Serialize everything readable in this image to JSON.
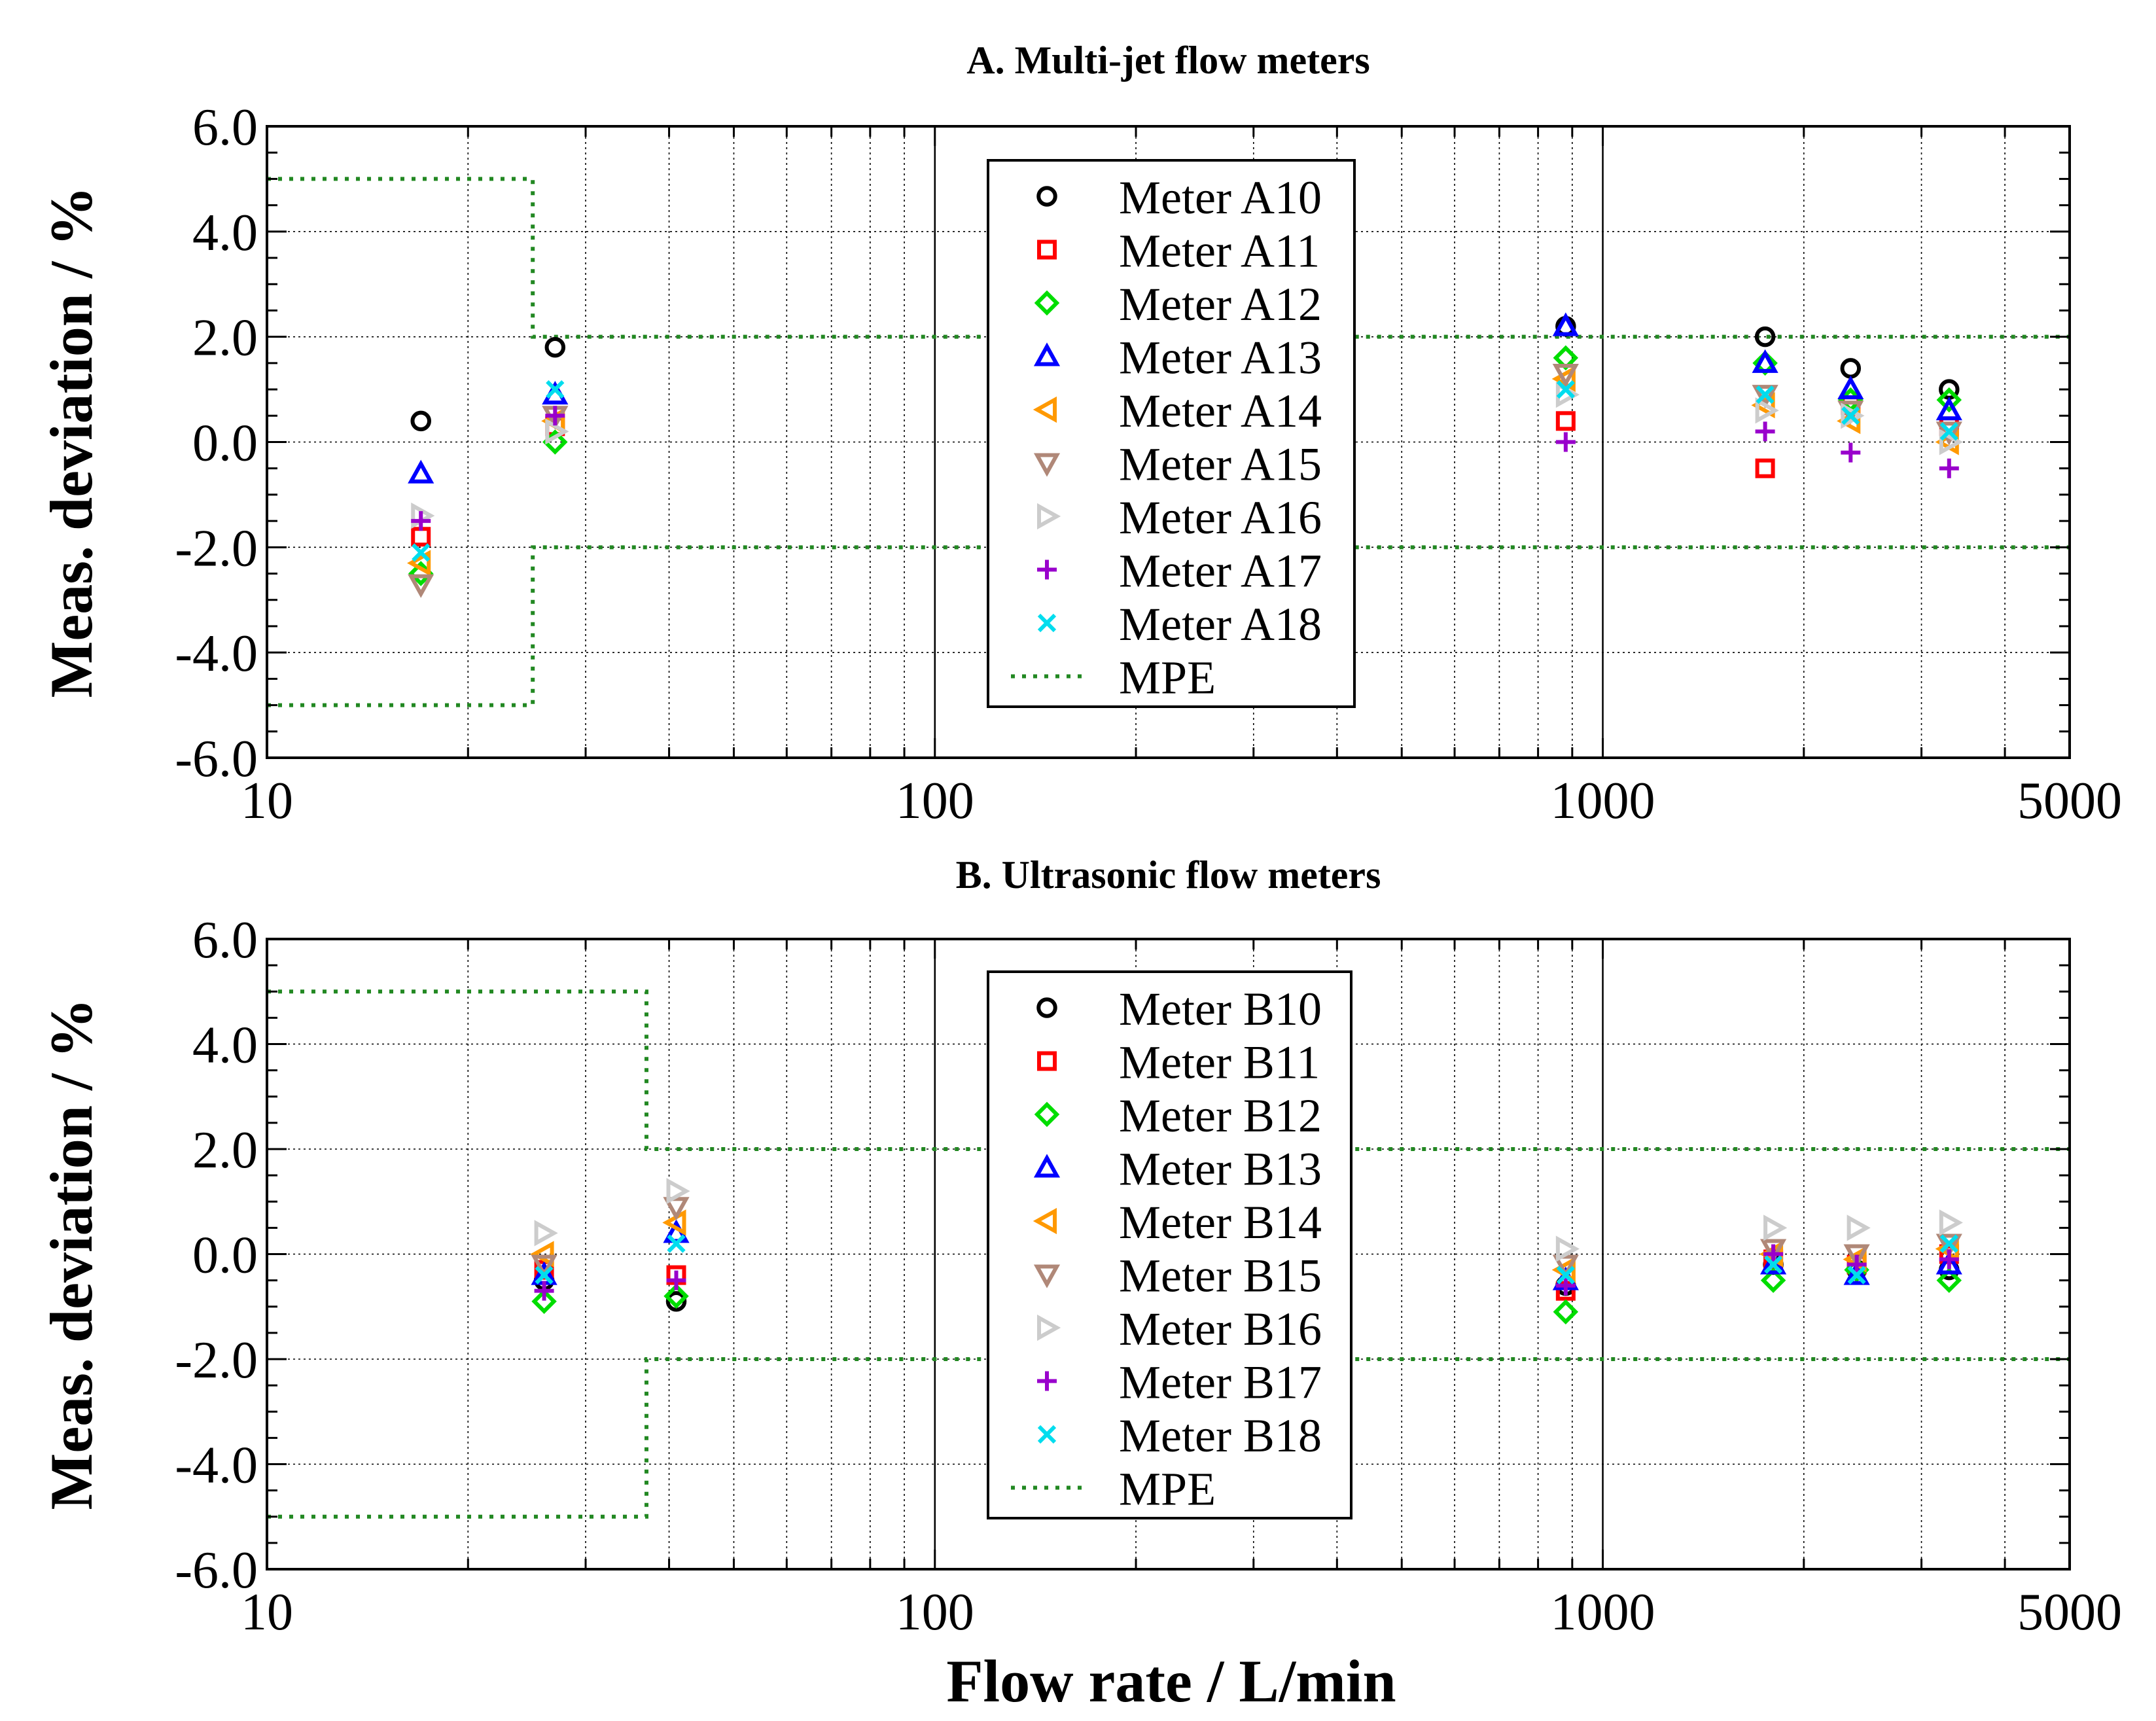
{
  "figure": {
    "xlabel": "Flow rate / L/min"
  },
  "chart_data": [
    {
      "type": "scatter",
      "title": "A. Multi-jet flow meters",
      "xlabel": "Flow rate / L/min",
      "ylabel": "Meas. deviation / %",
      "xscale": "log",
      "xlim": [
        10,
        5000
      ],
      "ylim": [
        -6.0,
        6.0
      ],
      "x_ticks": [
        "10",
        "100",
        "1000",
        "5000"
      ],
      "y_ticks": [
        "6.0",
        "4.0",
        "2.0",
        "0.0",
        "-2.0",
        "-4.0",
        "-6.0"
      ],
      "grid": true,
      "legend_position": "top-center",
      "x": [
        17,
        27,
        880,
        1750,
        2350,
        3300
      ],
      "series": [
        {
          "name": "Meter A10",
          "marker": "circle",
          "color": "#000000",
          "values": [
            0.4,
            1.8,
            2.2,
            2.0,
            1.4,
            1.0
          ]
        },
        {
          "name": "Meter A11",
          "marker": "square",
          "color": "#ff0000",
          "values": [
            -1.8,
            0.3,
            0.4,
            -0.5,
            0.7,
            0.3
          ]
        },
        {
          "name": "Meter A12",
          "marker": "diamond",
          "color": "#00dd00",
          "values": [
            -2.5,
            0.0,
            1.6,
            1.5,
            0.8,
            0.8
          ]
        },
        {
          "name": "Meter A13",
          "marker": "triangle-up",
          "color": "#0000ff",
          "values": [
            -0.6,
            0.9,
            2.2,
            1.5,
            1.0,
            0.6
          ]
        },
        {
          "name": "Meter A14",
          "marker": "triangle-left",
          "color": "#ff9900",
          "values": [
            -2.3,
            0.4,
            1.2,
            0.7,
            0.4,
            0.0
          ]
        },
        {
          "name": "Meter A15",
          "marker": "triangle-down",
          "color": "#b08878",
          "values": [
            -2.7,
            0.5,
            1.3,
            0.9,
            0.6,
            0.2
          ]
        },
        {
          "name": "Meter A16",
          "marker": "triangle-right",
          "color": "#cccccc",
          "values": [
            -1.4,
            0.2,
            0.9,
            0.6,
            0.5,
            0.0
          ]
        },
        {
          "name": "Meter A17",
          "marker": "plus",
          "color": "#9900cc",
          "values": [
            -1.5,
            0.5,
            0.0,
            0.2,
            -0.2,
            -0.5
          ]
        },
        {
          "name": "Meter A18",
          "marker": "cross",
          "color": "#00ddee",
          "values": [
            -2.1,
            1.0,
            1.0,
            0.9,
            0.5,
            0.2
          ]
        },
        {
          "name": "MPE",
          "marker": "line",
          "color": "#228822",
          "values": []
        }
      ],
      "mpe": {
        "transition": 25,
        "low_upper": 5.0,
        "low_lower": -5.0,
        "high_upper": 2.0,
        "high_lower": -2.0
      }
    },
    {
      "type": "scatter",
      "title": "B. Ultrasonic flow meters",
      "xlabel": "Flow rate / L/min",
      "ylabel": "Meas. deviation / %",
      "xscale": "log",
      "xlim": [
        10,
        5000
      ],
      "ylim": [
        -6.0,
        6.0
      ],
      "x_ticks": [
        "10",
        "100",
        "1000",
        "5000"
      ],
      "y_ticks": [
        "6.0",
        "4.0",
        "2.0",
        "0.0",
        "-2.0",
        "-4.0",
        "-6.0"
      ],
      "grid": true,
      "legend_position": "top-center",
      "x": [
        26,
        41,
        880,
        1800,
        2400,
        3300
      ],
      "series": [
        {
          "name": "Meter B10",
          "marker": "circle",
          "color": "#000000",
          "values": [
            -0.5,
            -0.9,
            -0.6,
            -0.2,
            -0.3,
            -0.3
          ]
        },
        {
          "name": "Meter B11",
          "marker": "square",
          "color": "#ff0000",
          "values": [
            -0.3,
            -0.4,
            -0.7,
            -0.1,
            -0.2,
            0.0
          ]
        },
        {
          "name": "Meter B12",
          "marker": "diamond",
          "color": "#00dd00",
          "values": [
            -0.9,
            -0.8,
            -1.1,
            -0.5,
            -0.3,
            -0.5
          ]
        },
        {
          "name": "Meter B13",
          "marker": "triangle-up",
          "color": "#0000ff",
          "values": [
            -0.4,
            0.4,
            -0.5,
            -0.2,
            -0.4,
            -0.2
          ]
        },
        {
          "name": "Meter B14",
          "marker": "triangle-left",
          "color": "#ff9900",
          "values": [
            0.0,
            0.6,
            -0.3,
            0.0,
            -0.1,
            0.1
          ]
        },
        {
          "name": "Meter B15",
          "marker": "triangle-down",
          "color": "#b08878",
          "values": [
            -0.2,
            0.9,
            -0.2,
            0.1,
            0.0,
            0.2
          ]
        },
        {
          "name": "Meter B16",
          "marker": "triangle-right",
          "color": "#cccccc",
          "values": [
            0.4,
            1.2,
            0.1,
            0.5,
            0.5,
            0.6
          ]
        },
        {
          "name": "Meter B17",
          "marker": "plus",
          "color": "#9900cc",
          "values": [
            -0.7,
            -0.5,
            -0.6,
            0.0,
            -0.2,
            -0.1
          ]
        },
        {
          "name": "Meter B18",
          "marker": "cross",
          "color": "#00ddee",
          "values": [
            -0.4,
            0.2,
            -0.4,
            -0.2,
            -0.4,
            0.2
          ]
        },
        {
          "name": "MPE",
          "marker": "line",
          "color": "#228822",
          "values": []
        }
      ],
      "mpe": {
        "transition": 37,
        "low_upper": 5.0,
        "low_lower": -5.0,
        "high_upper": 2.0,
        "high_lower": -2.0
      }
    }
  ]
}
